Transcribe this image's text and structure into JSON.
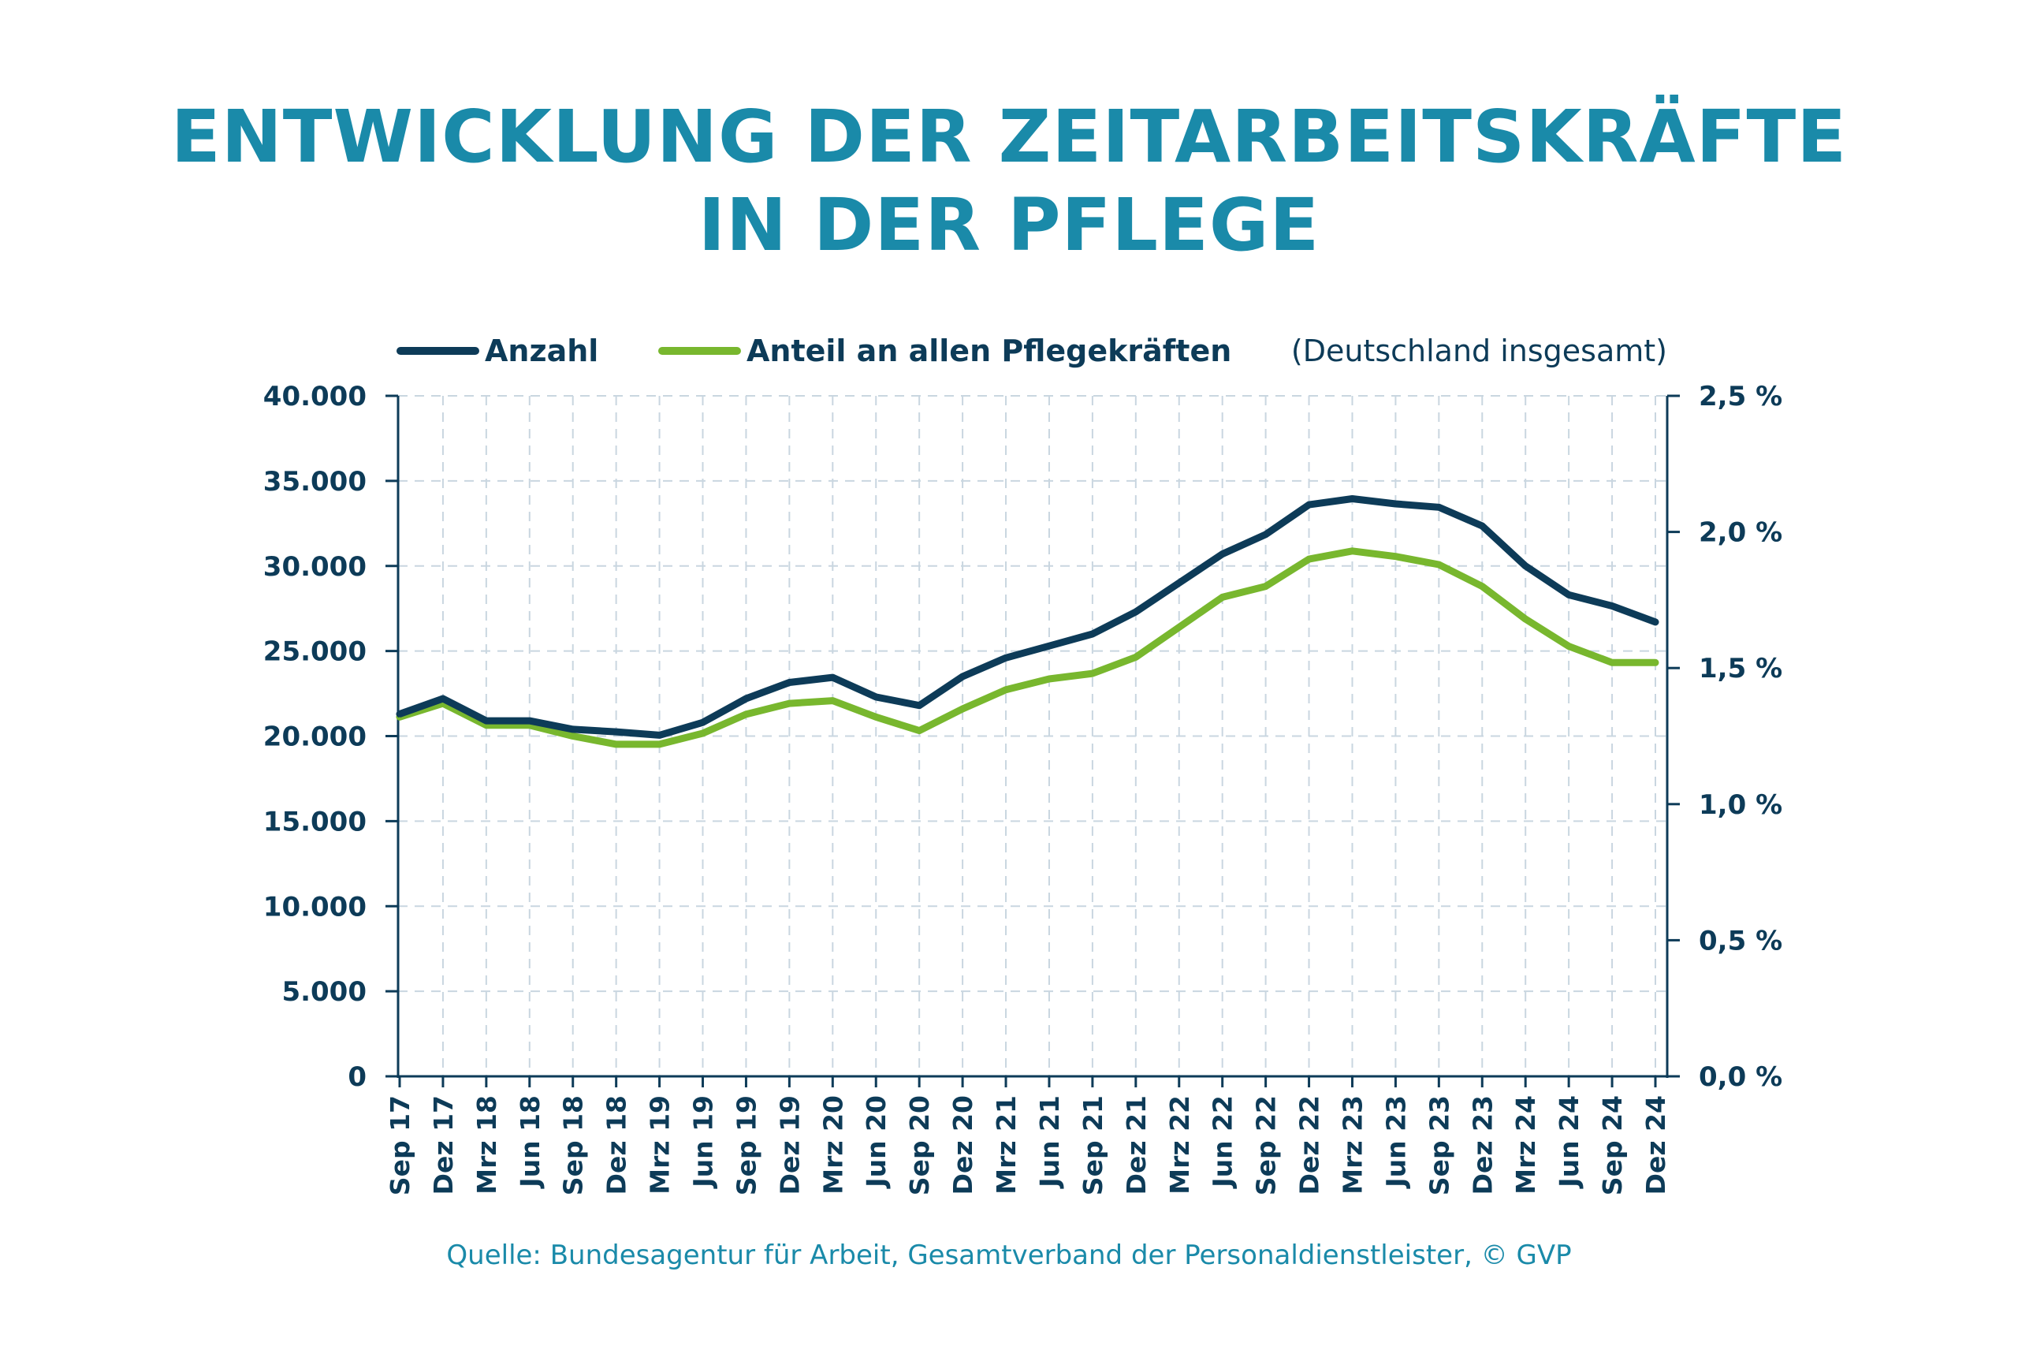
{
  "title_lines": [
    "ENTWICKLUNG DER ZEITARBEITSKRÄFTE",
    "IN DER PFLEGE"
  ],
  "source": "Quelle: Bundesagentur für Arbeit, Gesamtverband der Personaldienstleister, © GVP",
  "colors": {
    "title": "#1a8aa9",
    "anzahl": "#0d3b58",
    "anteil": "#78b72e",
    "axis": "#0d3b58",
    "grid": "#c9d6e0"
  },
  "chart_data": {
    "type": "line",
    "legend": [
      {
        "name": "Anzahl",
        "series": "anzahl"
      },
      {
        "name": "Anteil an allen Pflegekräften",
        "series": "anteil"
      }
    ],
    "legend_note": "(Deutschland insgesamt)",
    "categories": [
      "Sep 17",
      "Dez 17",
      "Mrz 18",
      "Jun 18",
      "Sep 18",
      "Dez 18",
      "Mrz 19",
      "Jun 19",
      "Sep 19",
      "Dez 19",
      "Mrz 20",
      "Jun 20",
      "Sep 20",
      "Dez 20",
      "Mrz 21",
      "Jun 21",
      "Sep 21",
      "Dez 21",
      "Mrz 22",
      "Jun 22",
      "Sep 22",
      "Dez 22",
      "Mrz 23",
      "Jun 23",
      "Sep 23",
      "Dez 23",
      "Mrz 24",
      "Jun 24",
      "Sep 24",
      "Dez 24"
    ],
    "series": [
      {
        "name": "Anzahl",
        "axis": "left",
        "values": [
          21300,
          22200,
          20900,
          20900,
          20400,
          20250,
          20050,
          20800,
          22200,
          23150,
          23450,
          22300,
          21800,
          23500,
          24600,
          25300,
          26000,
          27300,
          29000,
          30700,
          31850,
          33600,
          33950,
          33650,
          33450,
          32350,
          30000,
          28300,
          27650,
          26700
        ]
      },
      {
        "name": "Anteil an allen Pflegekräften",
        "axis": "right",
        "values": [
          1.32,
          1.37,
          1.29,
          1.29,
          1.25,
          1.22,
          1.22,
          1.26,
          1.33,
          1.37,
          1.38,
          1.32,
          1.27,
          1.35,
          1.42,
          1.46,
          1.48,
          1.54,
          1.65,
          1.76,
          1.8,
          1.9,
          1.93,
          1.91,
          1.88,
          1.8,
          1.68,
          1.58,
          1.52,
          1.52
        ]
      }
    ],
    "y_left": {
      "min": 0,
      "max": 40000,
      "ticks": [
        0,
        5000,
        10000,
        15000,
        20000,
        25000,
        30000,
        35000,
        40000
      ],
      "tick_labels": [
        "0",
        "5.000",
        "10.000",
        "15.000",
        "20.000",
        "25.000",
        "30.000",
        "35.000",
        "40.000"
      ]
    },
    "y_right": {
      "min": 0,
      "max": 2.5,
      "ticks": [
        0,
        0.5,
        1.0,
        1.5,
        2.0,
        2.5
      ],
      "tick_labels": [
        "0,0 %",
        "0,5 %",
        "1,0 %",
        "1,5 %",
        "2,0 %",
        "2,5 %"
      ]
    },
    "grid": true
  }
}
